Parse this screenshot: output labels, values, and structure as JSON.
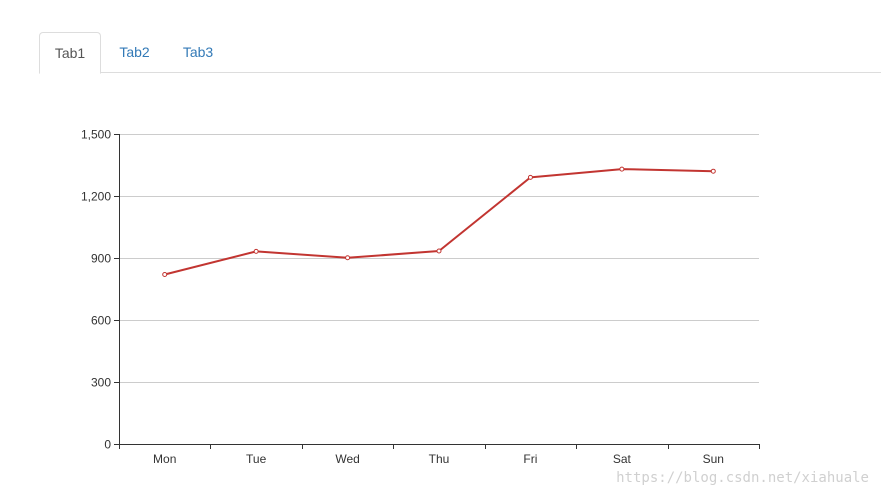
{
  "tabs": [
    {
      "label": "Tab1",
      "active": true
    },
    {
      "label": "Tab2",
      "active": false
    },
    {
      "label": "Tab3",
      "active": false
    }
  ],
  "colors": {
    "tab_link": "#337ab7",
    "series_line": "#c23531",
    "grid": "#cccccc",
    "axis": "#333333"
  },
  "watermark": "https://blog.csdn.net/xiahuale",
  "chart_data": {
    "type": "line",
    "categories": [
      "Mon",
      "Tue",
      "Wed",
      "Thu",
      "Fri",
      "Sat",
      "Sun"
    ],
    "series": [
      {
        "values": [
          820,
          932,
          901,
          934,
          1290,
          1330,
          1320
        ]
      }
    ],
    "yticks": [
      "0",
      "300",
      "600",
      "900",
      "1,200",
      "1,500"
    ],
    "ylim": [
      0,
      1500
    ],
    "grid": true,
    "legend": "none",
    "title": "",
    "xlabel": "",
    "ylabel": ""
  }
}
